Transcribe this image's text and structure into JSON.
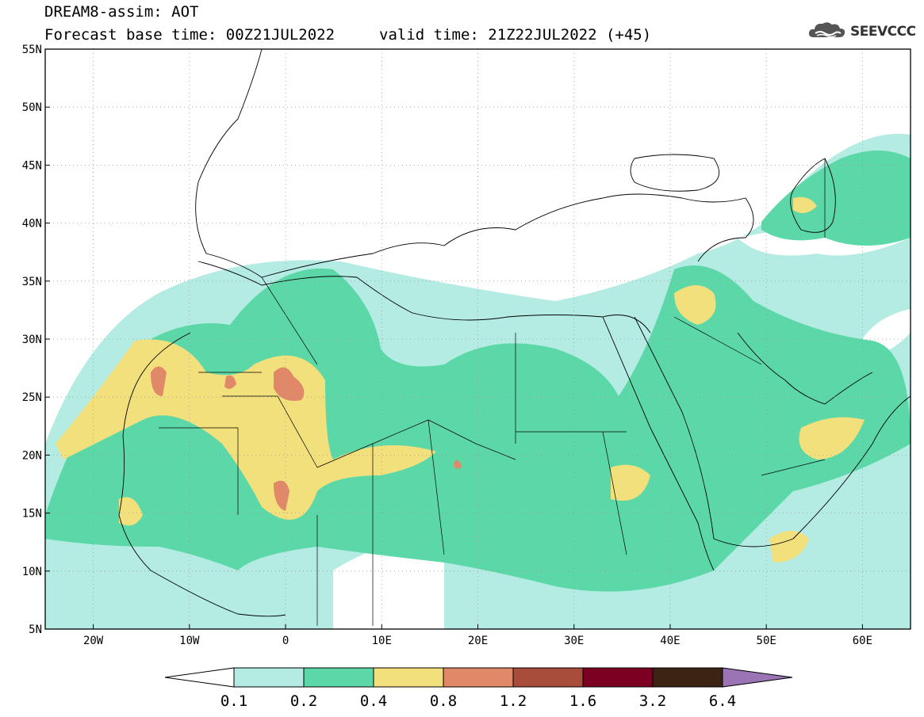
{
  "header": {
    "title": "DREAM8-assim: AOT",
    "forecast_base": "Forecast base time: 00Z21JUL2022",
    "valid_time": "valid time: 21Z22JUL2022 (+45)",
    "logo_text": "SEEVCCC"
  },
  "map": {
    "projection": "lat-lon",
    "lon_range": [
      -25,
      65
    ],
    "lat_range": [
      5,
      55
    ],
    "lat_ticks": [
      "55N",
      "50N",
      "45N",
      "40N",
      "35N",
      "30N",
      "25N",
      "20N",
      "15N",
      "10N",
      "5N"
    ],
    "lon_ticks": [
      "20W",
      "10W",
      "0",
      "10E",
      "20E",
      "30E",
      "40E",
      "50E",
      "60E"
    ],
    "grid": "dotted"
  },
  "colorbar": {
    "labels": [
      "0.1",
      "0.2",
      "0.4",
      "0.8",
      "1.2",
      "1.6",
      "3.2",
      "6.4"
    ],
    "colors": [
      "#b4ece4",
      "#5cd8a8",
      "#f2e07c",
      "#e08868",
      "#a84c3c",
      "#7c0020",
      "#3c2414",
      "#9a74b4"
    ]
  },
  "icons": {
    "logo": "cloud-logo-icon"
  }
}
